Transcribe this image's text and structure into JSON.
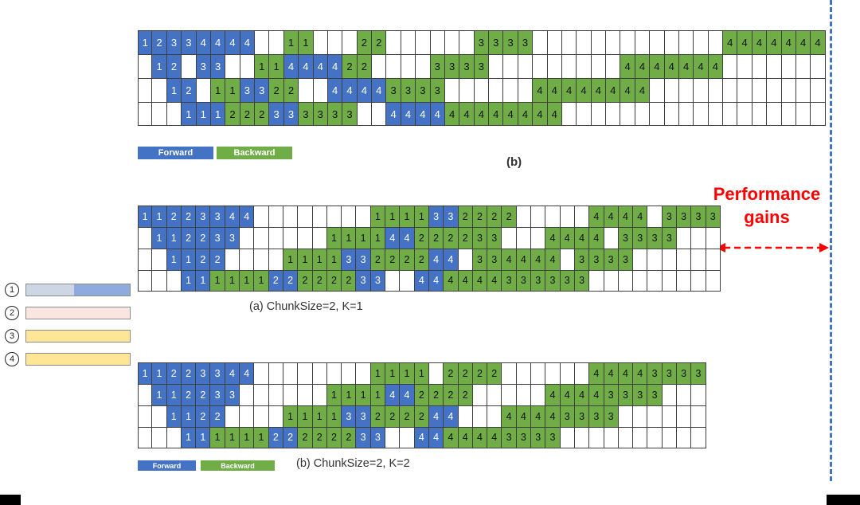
{
  "palette": {
    "forward_blue": "#4472c4",
    "backward_green": "#70ad47",
    "cell_border": "#3f3f3f",
    "red": "#ff0000",
    "dashed_line_blue": "#4472c4"
  },
  "annotations": {
    "performance_gains_line1": "Performance",
    "performance_gains_line2": "gains"
  },
  "top_diagram": {
    "caption": "(b)",
    "legend": {
      "forward": "Forward",
      "backward": "Backward"
    },
    "cols": 47,
    "rows": [
      [
        {
          "start": 1,
          "kind": "F",
          "values": [
            "1",
            "2",
            "3",
            "3",
            "4",
            "4",
            "4",
            "4"
          ]
        },
        {
          "start": 11,
          "kind": "B",
          "values": [
            "1",
            "1"
          ]
        },
        {
          "start": 16,
          "kind": "B",
          "values": [
            "2",
            "2"
          ]
        },
        {
          "start": 24,
          "kind": "B",
          "values": [
            "3",
            "3",
            "3",
            "3"
          ]
        },
        {
          "start": 41,
          "kind": "B",
          "values": [
            "4",
            "4",
            "4",
            "4",
            "4",
            "4",
            "4"
          ]
        }
      ],
      [
        {
          "start": 2,
          "kind": "F",
          "values": [
            "1",
            "2"
          ]
        },
        {
          "start": 5,
          "kind": "F",
          "values": [
            "3",
            "3"
          ]
        },
        {
          "start": 9,
          "kind": "B",
          "values": [
            "1",
            "1"
          ]
        },
        {
          "start": 11,
          "kind": "F",
          "values": [
            "4",
            "4",
            "4",
            "4"
          ]
        },
        {
          "start": 15,
          "kind": "B",
          "values": [
            "2",
            "2"
          ]
        },
        {
          "start": 21,
          "kind": "B",
          "values": [
            "3",
            "3",
            "3",
            "3"
          ]
        },
        {
          "start": 34,
          "kind": "B",
          "values": [
            "4",
            "4",
            "4",
            "4",
            "4",
            "4",
            "4"
          ]
        }
      ],
      [
        {
          "start": 3,
          "kind": "F",
          "values": [
            "1",
            "2"
          ]
        },
        {
          "start": 6,
          "kind": "B",
          "values": [
            "1",
            "1"
          ]
        },
        {
          "start": 8,
          "kind": "F",
          "values": [
            "3",
            "3"
          ]
        },
        {
          "start": 10,
          "kind": "B",
          "values": [
            "2",
            "2"
          ]
        },
        {
          "start": 14,
          "kind": "F",
          "values": [
            "4",
            "4",
            "4",
            "4"
          ]
        },
        {
          "start": 18,
          "kind": "B",
          "values": [
            "3",
            "3",
            "3",
            "3"
          ]
        },
        {
          "start": 28,
          "kind": "B",
          "values": [
            "4",
            "4",
            "4",
            "4",
            "4",
            "4",
            "4",
            "4"
          ]
        }
      ],
      [
        {
          "start": 4,
          "kind": "F",
          "values": [
            "1",
            "1",
            "1"
          ]
        },
        {
          "start": 7,
          "kind": "B",
          "values": [
            "2",
            "2",
            "2"
          ]
        },
        {
          "start": 10,
          "kind": "F",
          "values": [
            "3",
            "3"
          ]
        },
        {
          "start": 12,
          "kind": "B",
          "values": [
            "3",
            "3",
            "3",
            "3"
          ]
        },
        {
          "start": 18,
          "kind": "F",
          "values": [
            "4",
            "4",
            "4",
            "4"
          ]
        },
        {
          "start": 22,
          "kind": "B",
          "values": [
            "4",
            "4",
            "4",
            "4",
            "4",
            "4",
            "4",
            "4"
          ]
        }
      ]
    ]
  },
  "middle_diagram": {
    "caption": "(a) ChunkSize=2, K=1",
    "cols": 40,
    "rows": [
      [
        {
          "start": 1,
          "kind": "F",
          "values": [
            "1",
            "1",
            "2",
            "2",
            "3",
            "3",
            "4",
            "4"
          ]
        },
        {
          "start": 17,
          "kind": "B",
          "values": [
            "1",
            "1",
            "1",
            "1"
          ]
        },
        {
          "start": 21,
          "kind": "F",
          "values": [
            "3",
            "3"
          ]
        },
        {
          "start": 23,
          "kind": "B",
          "values": [
            "2",
            "2",
            "2",
            "2"
          ]
        },
        {
          "start": 32,
          "kind": "B",
          "values": [
            "4",
            "4",
            "4",
            "4"
          ]
        },
        {
          "start": 37,
          "kind": "B",
          "values": [
            "3",
            "3",
            "3",
            "3"
          ]
        }
      ],
      [
        {
          "start": 2,
          "kind": "F",
          "values": [
            "1",
            "1",
            "2",
            "2",
            "3",
            "3"
          ]
        },
        {
          "start": 14,
          "kind": "B",
          "values": [
            "1",
            "1",
            "1",
            "1"
          ]
        },
        {
          "start": 18,
          "kind": "F",
          "values": [
            "4",
            "4"
          ]
        },
        {
          "start": 20,
          "kind": "B",
          "values": [
            "2",
            "2",
            "2",
            "2"
          ]
        },
        {
          "start": 24,
          "kind": "B",
          "values": [
            "3",
            "3"
          ]
        },
        {
          "start": 29,
          "kind": "B",
          "values": [
            "4",
            "4",
            "4",
            "4"
          ]
        },
        {
          "start": 34,
          "kind": "B",
          "values": [
            "3",
            "3",
            "3",
            "3"
          ]
        }
      ],
      [
        {
          "start": 3,
          "kind": "F",
          "values": [
            "1",
            "1",
            "2",
            "2"
          ]
        },
        {
          "start": 11,
          "kind": "B",
          "values": [
            "1",
            "1",
            "1",
            "1"
          ]
        },
        {
          "start": 15,
          "kind": "F",
          "values": [
            "3",
            "3"
          ]
        },
        {
          "start": 17,
          "kind": "B",
          "values": [
            "2",
            "2",
            "2",
            "2"
          ]
        },
        {
          "start": 21,
          "kind": "F",
          "values": [
            "4",
            "4"
          ]
        },
        {
          "start": 24,
          "kind": "B",
          "values": [
            "3",
            "3"
          ]
        },
        {
          "start": 26,
          "kind": "B",
          "values": [
            "4",
            "4",
            "4",
            "4"
          ]
        },
        {
          "start": 31,
          "kind": "B",
          "values": [
            "3",
            "3",
            "3",
            "3"
          ]
        }
      ],
      [
        {
          "start": 4,
          "kind": "F",
          "values": [
            "1",
            "1"
          ]
        },
        {
          "start": 6,
          "kind": "B",
          "values": [
            "1",
            "1",
            "1",
            "1"
          ]
        },
        {
          "start": 10,
          "kind": "F",
          "values": [
            "2",
            "2"
          ]
        },
        {
          "start": 12,
          "kind": "B",
          "values": [
            "2",
            "2",
            "2",
            "2"
          ]
        },
        {
          "start": 16,
          "kind": "F",
          "values": [
            "3",
            "3"
          ]
        },
        {
          "start": 20,
          "kind": "F",
          "values": [
            "4",
            "4"
          ]
        },
        {
          "start": 22,
          "kind": "B",
          "values": [
            "4",
            "4",
            "4",
            "4"
          ]
        },
        {
          "start": 26,
          "kind": "B",
          "values": [
            "3",
            "3"
          ]
        },
        {
          "start": 28,
          "kind": "B",
          "values": [
            "3",
            "3",
            "3",
            "3"
          ]
        }
      ]
    ]
  },
  "bottom_diagram": {
    "caption": "(b) ChunkSize=2, K=2",
    "legend": {
      "forward": "Forward",
      "backward": "Backward"
    },
    "cols": 39,
    "rows": [
      [
        {
          "start": 1,
          "kind": "F",
          "values": [
            "1",
            "1",
            "2",
            "2",
            "3",
            "3",
            "4",
            "4"
          ]
        },
        {
          "start": 17,
          "kind": "B",
          "values": [
            "1",
            "1",
            "1",
            "1"
          ]
        },
        {
          "start": 22,
          "kind": "B",
          "values": [
            "2",
            "2",
            "2",
            "2"
          ]
        },
        {
          "start": 32,
          "kind": "B",
          "values": [
            "4",
            "4",
            "4",
            "4"
          ]
        },
        {
          "start": 36,
          "kind": "B",
          "values": [
            "3",
            "3",
            "3",
            "3"
          ]
        }
      ],
      [
        {
          "start": 2,
          "kind": "F",
          "values": [
            "1",
            "1",
            "2",
            "2",
            "3",
            "3"
          ]
        },
        {
          "start": 14,
          "kind": "B",
          "values": [
            "1",
            "1",
            "1",
            "1"
          ]
        },
        {
          "start": 18,
          "kind": "F",
          "values": [
            "4",
            "4"
          ]
        },
        {
          "start": 20,
          "kind": "B",
          "values": [
            "2",
            "2",
            "2",
            "2"
          ]
        },
        {
          "start": 29,
          "kind": "B",
          "values": [
            "4",
            "4",
            "4",
            "4"
          ]
        },
        {
          "start": 33,
          "kind": "B",
          "values": [
            "3",
            "3",
            "3",
            "3"
          ]
        }
      ],
      [
        {
          "start": 3,
          "kind": "F",
          "values": [
            "1",
            "1",
            "2",
            "2"
          ]
        },
        {
          "start": 11,
          "kind": "B",
          "values": [
            "1",
            "1",
            "1",
            "1"
          ]
        },
        {
          "start": 15,
          "kind": "F",
          "values": [
            "3",
            "3"
          ]
        },
        {
          "start": 17,
          "kind": "B",
          "values": [
            "2",
            "2",
            "2",
            "2"
          ]
        },
        {
          "start": 21,
          "kind": "F",
          "values": [
            "4",
            "4"
          ]
        },
        {
          "start": 26,
          "kind": "B",
          "values": [
            "4",
            "4",
            "4",
            "4"
          ]
        },
        {
          "start": 30,
          "kind": "B",
          "values": [
            "3",
            "3",
            "3",
            "3"
          ]
        }
      ],
      [
        {
          "start": 4,
          "kind": "F",
          "values": [
            "1",
            "1"
          ]
        },
        {
          "start": 6,
          "kind": "B",
          "values": [
            "1",
            "1",
            "1",
            "1"
          ]
        },
        {
          "start": 10,
          "kind": "F",
          "values": [
            "2",
            "2"
          ]
        },
        {
          "start": 12,
          "kind": "B",
          "values": [
            "2",
            "2",
            "2",
            "2"
          ]
        },
        {
          "start": 16,
          "kind": "F",
          "values": [
            "3",
            "3"
          ]
        },
        {
          "start": 20,
          "kind": "F",
          "values": [
            "4",
            "4"
          ]
        },
        {
          "start": 22,
          "kind": "B",
          "values": [
            "4",
            "4",
            "4",
            "4"
          ]
        },
        {
          "start": 26,
          "kind": "B",
          "values": [
            "3",
            "3",
            "3",
            "3"
          ]
        }
      ]
    ]
  },
  "left_markers": [
    {
      "number": "1",
      "segments": [
        {
          "color": "#cdd6e4",
          "pct": 46
        },
        {
          "color": "#8faadc",
          "pct": 54
        }
      ]
    },
    {
      "number": "2",
      "segments": [
        {
          "color": "#fbe5e1",
          "pct": 100
        }
      ]
    },
    {
      "number": "3",
      "segments": [
        {
          "color": "#ffe596",
          "pct": 100
        }
      ]
    },
    {
      "number": "4",
      "segments": [
        {
          "color": "#ffe596",
          "pct": 100
        }
      ]
    }
  ]
}
